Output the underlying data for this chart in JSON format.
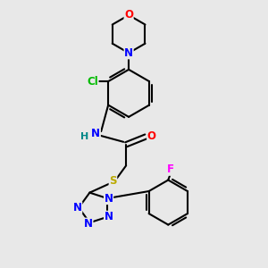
{
  "bg_color": "#e8e8e8",
  "bond_color": "#000000",
  "bond_width": 1.5,
  "atom_colors": {
    "O": "#ff0000",
    "N": "#0000ff",
    "Cl": "#00bb00",
    "S": "#bbaa00",
    "F": "#ff00ff",
    "H": "#008888",
    "C": "#000000"
  },
  "font_size": 8.5,
  "fig_size": [
    3.0,
    3.0
  ],
  "dpi": 100
}
